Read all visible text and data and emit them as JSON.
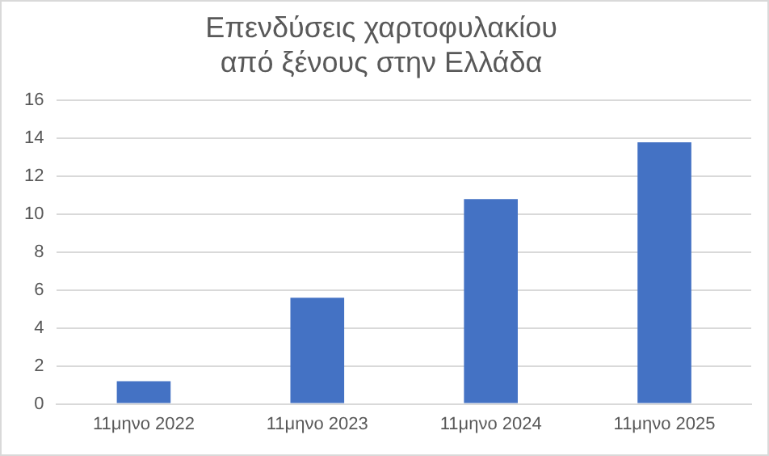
{
  "chart_data": {
    "type": "bar",
    "title": [
      "Επενδύσεις χαρτοφυλακίου",
      "από ξένους στην Ελλάδα"
    ],
    "categories": [
      "11μηνο 2022",
      "11μηνο 2023",
      "11μηνο 2024",
      "11μηνο 2025"
    ],
    "values": [
      1.2,
      5.6,
      10.8,
      13.8
    ],
    "color": "#4472c4",
    "ylim": [
      0,
      16
    ],
    "yticks": [
      0,
      2,
      4,
      6,
      8,
      10,
      12,
      14,
      16
    ],
    "grid": "y",
    "legend": false
  }
}
